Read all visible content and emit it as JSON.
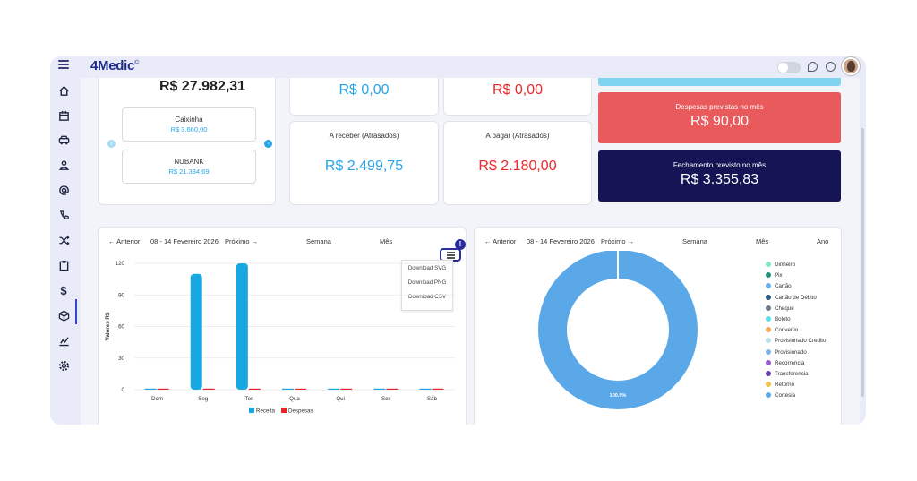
{
  "app": {
    "logo": "4Medic",
    "logo_mark": "©"
  },
  "balance": {
    "total": "R$ 27.982,31",
    "accounts": [
      {
        "name": "Caixinha",
        "value": "R$ 3.660,00"
      },
      {
        "name": "NUBANK",
        "value": "R$ 21.334,69"
      }
    ]
  },
  "summary": {
    "received_top": "R$ 0,00",
    "paid_top": "R$ 0,00",
    "receivable_overdue_label": "A receber (Atrasados)",
    "receivable_overdue_value": "R$ 2.499,75",
    "payable_overdue_label": "A pagar (Atrasados)",
    "payable_overdue_value": "R$ 2.180,00",
    "expected_expenses_label": "Despesas previstas no mês",
    "expected_expenses_value": "R$ 90,00",
    "expected_closing_label": "Fechamento previsto no mês",
    "expected_closing_value": "R$ 3.355,83"
  },
  "bar_panel": {
    "prev": "← Anterior",
    "range": "08 - 14 Fevereiro 2026",
    "next": "Próximo →",
    "week": "Semana",
    "month": "Mês",
    "menu_badge": "!",
    "download_options": [
      "Download SVG",
      "Download PNG",
      "Download CSV"
    ],
    "colors": {
      "receita": "#19a7e2",
      "despesas": "#e8242a"
    }
  },
  "donut_panel": {
    "prev": "← Anterior",
    "range": "08 - 14 Fevereiro 2026",
    "next": "Próximo →",
    "week": "Semana",
    "month": "Mês",
    "year": "Ano",
    "center_label": "100.0%",
    "legend": [
      {
        "name": "Dinheiro",
        "color": "#7fe3c9"
      },
      {
        "name": "Pix",
        "color": "#1f8f7a"
      },
      {
        "name": "Cartão",
        "color": "#64b0f2"
      },
      {
        "name": "Cartão de Débito",
        "color": "#2a5e8a"
      },
      {
        "name": "Cheque",
        "color": "#6b7a8c"
      },
      {
        "name": "Boleto",
        "color": "#5de0e8"
      },
      {
        "name": "Convenio",
        "color": "#f2a65a"
      },
      {
        "name": "Provisionado Credito",
        "color": "#b8e0e8"
      },
      {
        "name": "Provisionado",
        "color": "#7fb2e8"
      },
      {
        "name": "Recorrencia",
        "color": "#9b59d0"
      },
      {
        "name": "Transferencia",
        "color": "#6a3fb0"
      },
      {
        "name": "Retorno",
        "color": "#f2c04a"
      },
      {
        "name": "Cortesia",
        "color": "#5aa8e8"
      }
    ]
  },
  "chart_data": [
    {
      "type": "bar",
      "categories": [
        "Dom",
        "Seg",
        "Ter",
        "Qua",
        "Qui",
        "Sex",
        "Sáb"
      ],
      "series": [
        {
          "name": "Receita",
          "values": [
            0,
            110,
            120,
            0,
            0,
            0,
            0
          ],
          "color": "#19a7e2"
        },
        {
          "name": "Despesas",
          "values": [
            0,
            0,
            0,
            0,
            0,
            0,
            0
          ],
          "color": "#e8242a"
        }
      ],
      "ylabel": "Valores R$",
      "yticks": [
        0,
        30,
        60,
        90,
        120
      ],
      "ylim": [
        0,
        120
      ],
      "grid": true,
      "legend": "bottom"
    },
    {
      "type": "pie",
      "donut": true,
      "slices": [
        {
          "name": "Cortesia",
          "value": 100.0
        }
      ],
      "label": "100.0%",
      "legend": "right"
    }
  ]
}
